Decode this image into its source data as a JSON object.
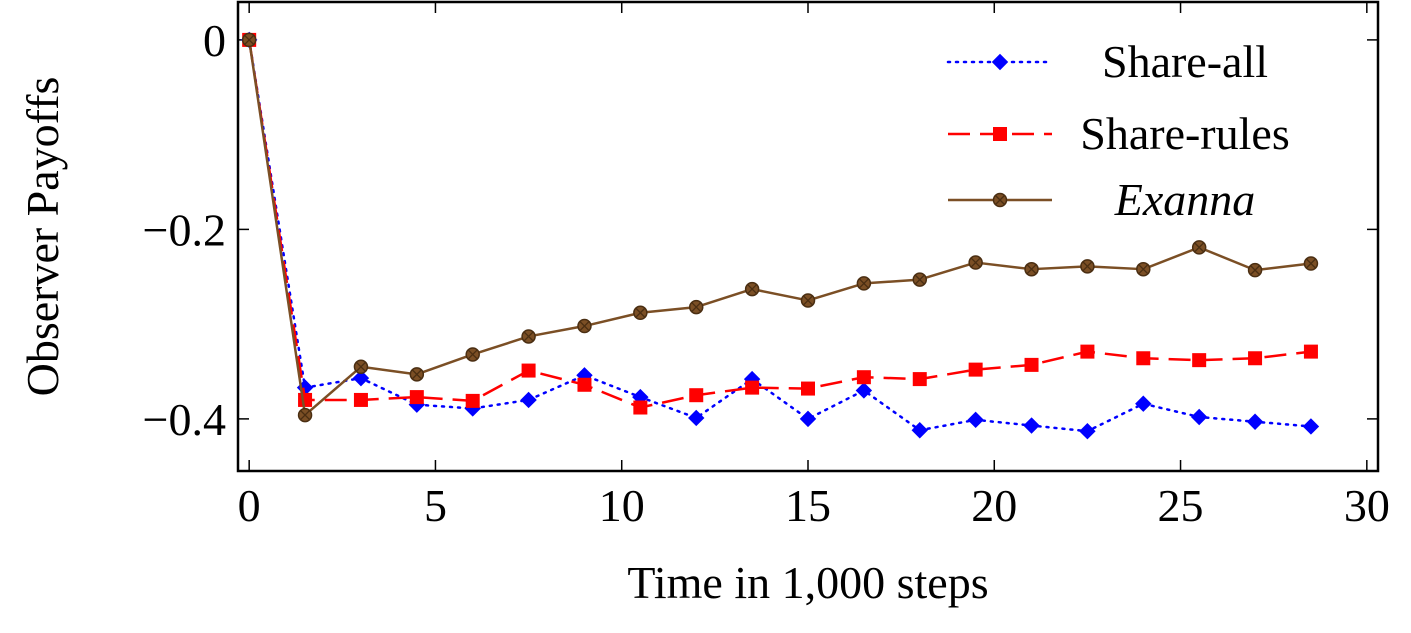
{
  "chart_data": {
    "type": "line",
    "xlabel": "Time in 1,000 steps",
    "ylabel": "Observer Payoffs",
    "xlim": [
      -0.3,
      30.3
    ],
    "ylim": [
      -0.455,
      0.04
    ],
    "xticks": [
      0,
      5,
      10,
      15,
      20,
      25,
      30
    ],
    "xtick_labels": [
      "0",
      "5",
      "10",
      "15",
      "20",
      "25",
      "30"
    ],
    "yticks": [
      0,
      -0.2,
      -0.4
    ],
    "ytick_labels": [
      "0",
      "−0.2",
      "−0.4"
    ],
    "grid": false,
    "legend_position": "top-right",
    "x": [
      0,
      1.5,
      3,
      4.5,
      6,
      7.5,
      9,
      10.5,
      12,
      13.5,
      15,
      16.5,
      18,
      19.5,
      21,
      22.5,
      24,
      25.5,
      27,
      28.5
    ],
    "series": [
      {
        "name": "Share-all",
        "color": "#0000ff",
        "line_style": "dotted",
        "marker": "diamond",
        "values": [
          0,
          -0.367,
          -0.357,
          -0.385,
          -0.389,
          -0.38,
          -0.354,
          -0.377,
          -0.399,
          -0.358,
          -0.4,
          -0.37,
          -0.412,
          -0.401,
          -0.407,
          -0.413,
          -0.384,
          -0.398,
          -0.403,
          -0.408
        ]
      },
      {
        "name": "Share-rules",
        "color": "#ff0000",
        "line_style": "dashed",
        "marker": "square",
        "values": [
          0,
          -0.38,
          -0.38,
          -0.377,
          -0.381,
          -0.349,
          -0.364,
          -0.388,
          -0.375,
          -0.367,
          -0.368,
          -0.356,
          -0.358,
          -0.348,
          -0.343,
          -0.329,
          -0.336,
          -0.338,
          -0.336,
          -0.329
        ]
      },
      {
        "name": "Exanna",
        "color": "#7b4f25",
        "line_style": "solid",
        "marker": "circle",
        "values": [
          0,
          -0.396,
          -0.345,
          -0.353,
          -0.332,
          -0.313,
          -0.302,
          -0.288,
          -0.282,
          -0.263,
          -0.275,
          -0.257,
          -0.253,
          -0.235,
          -0.242,
          -0.239,
          -0.242,
          -0.219,
          -0.243,
          -0.236
        ]
      }
    ]
  }
}
